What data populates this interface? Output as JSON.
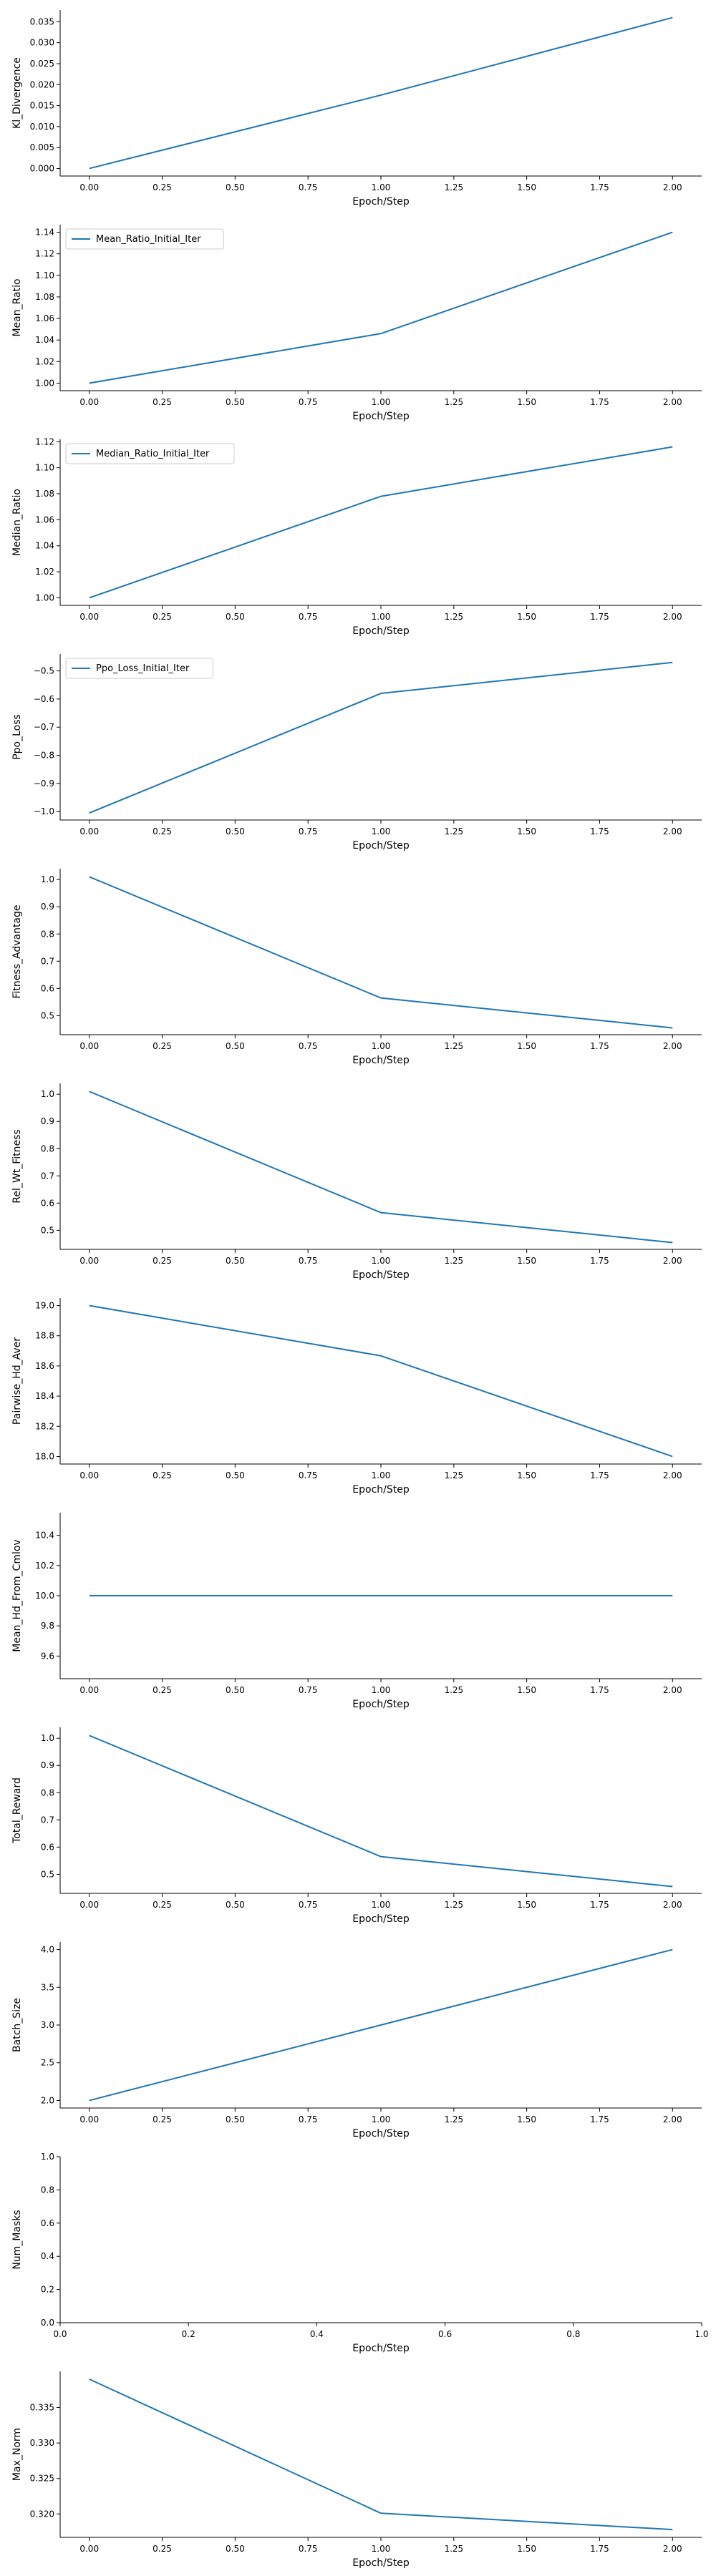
{
  "chart_data": [
    {
      "type": "line",
      "ylabel": "Kl_Divergence",
      "xlabel": "Epoch/Step",
      "x": [
        0,
        1,
        2
      ],
      "series": [
        {
          "values": [
            0.0,
            0.0175,
            0.036
          ]
        }
      ],
      "color": "#1f77b4",
      "xlim": [
        -0.1,
        2.1
      ],
      "ylim": [
        -0.0018,
        0.0378
      ],
      "xticks": [
        "0.00",
        "0.25",
        "0.50",
        "0.75",
        "1.00",
        "1.25",
        "1.50",
        "1.75",
        "2.00"
      ],
      "yticks": [
        "0.000",
        "0.005",
        "0.010",
        "0.015",
        "0.020",
        "0.025",
        "0.030",
        "0.035"
      ],
      "legend": null,
      "grid": false
    },
    {
      "type": "line",
      "ylabel": "Mean_Ratio",
      "xlabel": "Epoch/Step",
      "x": [
        0,
        1,
        2
      ],
      "series": [
        {
          "name": "Mean_Ratio_Initial_Iter",
          "values": [
            1.0,
            1.046,
            1.14
          ]
        }
      ],
      "color": "#1f77b4",
      "xlim": [
        -0.1,
        2.1
      ],
      "ylim": [
        0.993,
        1.147
      ],
      "xticks": [
        "0.00",
        "0.25",
        "0.50",
        "0.75",
        "1.00",
        "1.25",
        "1.50",
        "1.75",
        "2.00"
      ],
      "yticks": [
        "1.00",
        "1.02",
        "1.04",
        "1.06",
        "1.08",
        "1.10",
        "1.12",
        "1.14"
      ],
      "legend": "top-left",
      "grid": false
    },
    {
      "type": "line",
      "ylabel": "Median_Ratio",
      "xlabel": "Epoch/Step",
      "x": [
        0,
        1,
        2
      ],
      "series": [
        {
          "name": "Median_Ratio_Initial_Iter",
          "values": [
            1.0,
            1.078,
            1.116
          ]
        }
      ],
      "color": "#1f77b4",
      "xlim": [
        -0.1,
        2.1
      ],
      "ylim": [
        0.9942,
        1.1218
      ],
      "xticks": [
        "0.00",
        "0.25",
        "0.50",
        "0.75",
        "1.00",
        "1.25",
        "1.50",
        "1.75",
        "2.00"
      ],
      "yticks": [
        "1.00",
        "1.02",
        "1.04",
        "1.06",
        "1.08",
        "1.10",
        "1.12"
      ],
      "legend": "top-left",
      "grid": false
    },
    {
      "type": "line",
      "ylabel": "Ppo_Loss",
      "xlabel": "Epoch/Step",
      "x": [
        0,
        1,
        2
      ],
      "series": [
        {
          "name": "Ppo_Loss_Initial_Iter",
          "values": [
            -1.005,
            -0.58,
            -0.47
          ]
        }
      ],
      "color": "#1f77b4",
      "xlim": [
        -0.1,
        2.1
      ],
      "ylim": [
        -1.03,
        -0.44
      ],
      "xticks": [
        "0.00",
        "0.25",
        "0.50",
        "0.75",
        "1.00",
        "1.25",
        "1.50",
        "1.75",
        "2.00"
      ],
      "yticks": [
        "−1.0",
        "−0.9",
        "−0.8",
        "−0.7",
        "−0.6",
        "−0.5"
      ],
      "legend": "top-left",
      "grid": false
    },
    {
      "type": "line",
      "ylabel": "Fitness_Advantage",
      "xlabel": "Epoch/Step",
      "x": [
        0,
        1,
        2
      ],
      "series": [
        {
          "values": [
            1.01,
            0.565,
            0.455
          ]
        }
      ],
      "color": "#1f77b4",
      "xlim": [
        -0.1,
        2.1
      ],
      "ylim": [
        0.43,
        1.04
      ],
      "xticks": [
        "0.00",
        "0.25",
        "0.50",
        "0.75",
        "1.00",
        "1.25",
        "1.50",
        "1.75",
        "2.00"
      ],
      "yticks": [
        "0.5",
        "0.6",
        "0.7",
        "0.8",
        "0.9",
        "1.0"
      ],
      "legend": null,
      "grid": false
    },
    {
      "type": "line",
      "ylabel": "Rel_Wt_Fitness",
      "xlabel": "Epoch/Step",
      "x": [
        0,
        1,
        2
      ],
      "series": [
        {
          "values": [
            1.01,
            0.565,
            0.455
          ]
        }
      ],
      "color": "#1f77b4",
      "xlim": [
        -0.1,
        2.1
      ],
      "ylim": [
        0.43,
        1.04
      ],
      "xticks": [
        "0.00",
        "0.25",
        "0.50",
        "0.75",
        "1.00",
        "1.25",
        "1.50",
        "1.75",
        "2.00"
      ],
      "yticks": [
        "0.5",
        "0.6",
        "0.7",
        "0.8",
        "0.9",
        "1.0"
      ],
      "legend": null,
      "grid": false
    },
    {
      "type": "line",
      "ylabel": "Pairwise_Hd_Aver",
      "xlabel": "Epoch/Step",
      "x": [
        0,
        1,
        2
      ],
      "series": [
        {
          "values": [
            19.0,
            18.667,
            18.0
          ]
        }
      ],
      "color": "#1f77b4",
      "xlim": [
        -0.1,
        2.1
      ],
      "ylim": [
        17.95,
        19.05
      ],
      "xticks": [
        "0.00",
        "0.25",
        "0.50",
        "0.75",
        "1.00",
        "1.25",
        "1.50",
        "1.75",
        "2.00"
      ],
      "yticks": [
        "18.0",
        "18.2",
        "18.4",
        "18.6",
        "18.8",
        "19.0"
      ],
      "legend": null,
      "grid": false
    },
    {
      "type": "line",
      "ylabel": "Mean_Hd_From_Cmlov",
      "xlabel": "Epoch/Step",
      "x": [
        0,
        1,
        2
      ],
      "series": [
        {
          "values": [
            10.0,
            10.0,
            10.0
          ]
        }
      ],
      "color": "#1f77b4",
      "xlim": [
        -0.1,
        2.1
      ],
      "ylim": [
        9.45,
        10.55
      ],
      "xticks": [
        "0.00",
        "0.25",
        "0.50",
        "0.75",
        "1.00",
        "1.25",
        "1.50",
        "1.75",
        "2.00"
      ],
      "yticks": [
        "9.6",
        "9.8",
        "10.0",
        "10.2",
        "10.4"
      ],
      "legend": null,
      "grid": false
    },
    {
      "type": "line",
      "ylabel": "Total_Reward",
      "xlabel": "Epoch/Step",
      "x": [
        0,
        1,
        2
      ],
      "series": [
        {
          "values": [
            1.01,
            0.565,
            0.455
          ]
        }
      ],
      "color": "#1f77b4",
      "xlim": [
        -0.1,
        2.1
      ],
      "ylim": [
        0.43,
        1.04
      ],
      "xticks": [
        "0.00",
        "0.25",
        "0.50",
        "0.75",
        "1.00",
        "1.25",
        "1.50",
        "1.75",
        "2.00"
      ],
      "yticks": [
        "0.5",
        "0.6",
        "0.7",
        "0.8",
        "0.9",
        "1.0"
      ],
      "legend": null,
      "grid": false
    },
    {
      "type": "line",
      "ylabel": "Batch_Size",
      "xlabel": "Epoch/Step",
      "x": [
        0,
        1,
        2
      ],
      "series": [
        {
          "values": [
            2.0,
            3.0,
            4.0
          ]
        }
      ],
      "color": "#1f77b4",
      "xlim": [
        -0.1,
        2.1
      ],
      "ylim": [
        1.9,
        4.1
      ],
      "xticks": [
        "0.00",
        "0.25",
        "0.50",
        "0.75",
        "1.00",
        "1.25",
        "1.50",
        "1.75",
        "2.00"
      ],
      "yticks": [
        "2.0",
        "2.5",
        "3.0",
        "3.5",
        "4.0"
      ],
      "legend": null,
      "grid": false
    },
    {
      "type": "line",
      "ylabel": "Num_Masks",
      "xlabel": "Epoch/Step",
      "x": [],
      "series": [],
      "color": "#1f77b4",
      "xlim": [
        0,
        1
      ],
      "ylim": [
        0,
        1
      ],
      "xticks": [
        "0.0",
        "0.2",
        "0.4",
        "0.6",
        "0.8",
        "1.0"
      ],
      "yticks": [
        "0.0",
        "0.2",
        "0.4",
        "0.6",
        "0.8",
        "1.0"
      ],
      "legend": null,
      "grid": false
    },
    {
      "type": "line",
      "ylabel": "Max_Norm",
      "xlabel": "Epoch/Step",
      "x": [
        0,
        1,
        2
      ],
      "series": [
        {
          "values": [
            0.339,
            0.3201,
            0.3178
          ]
        }
      ],
      "color": "#1f77b4",
      "xlim": [
        -0.1,
        2.1
      ],
      "ylim": [
        0.3167,
        0.3401
      ],
      "xticks": [
        "0.00",
        "0.25",
        "0.50",
        "0.75",
        "1.00",
        "1.25",
        "1.50",
        "1.75",
        "2.00"
      ],
      "yticks": [
        "0.320",
        "0.325",
        "0.330",
        "0.335"
      ],
      "legend": null,
      "grid": false
    }
  ]
}
